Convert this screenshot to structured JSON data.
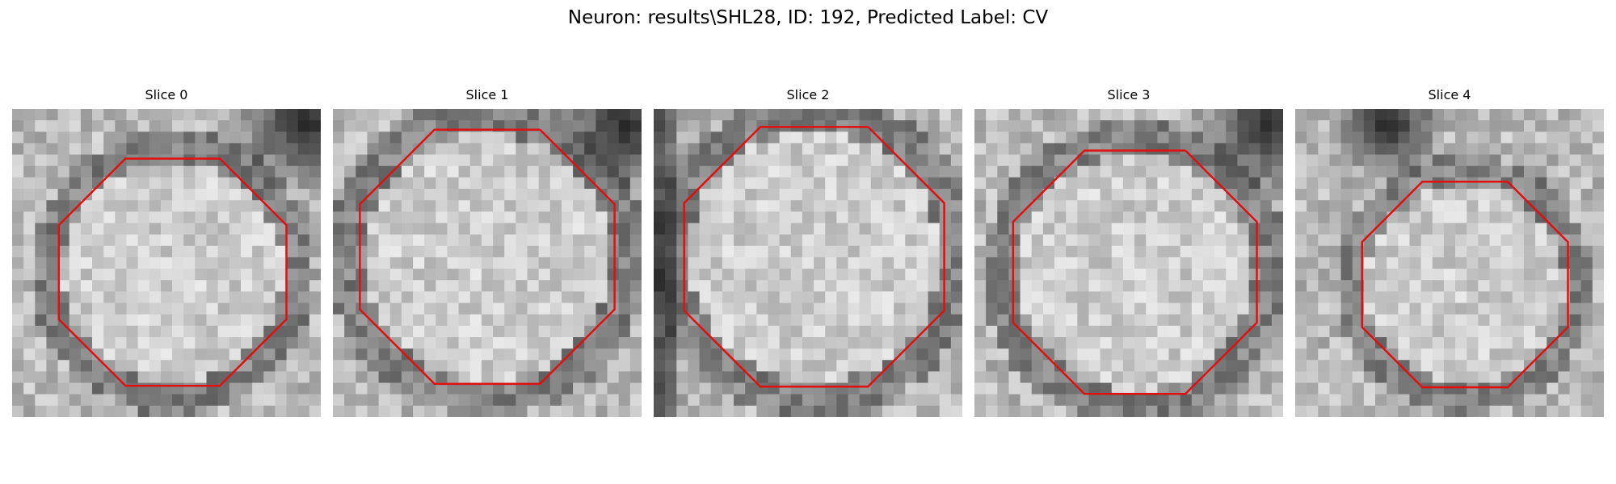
{
  "figure": {
    "title": "Neuron: results\\SHL28, ID: 192, Predicted Label: CV"
  },
  "colors": {
    "background": "#ffffff",
    "contour": "#e01010",
    "text": "#000000"
  },
  "panels": [
    {
      "title": "Slice 0",
      "seed": 11,
      "dark_corner": "top-right"
    },
    {
      "title": "Slice 1",
      "seed": 23,
      "dark_corner": "top-right"
    },
    {
      "title": "Slice 2",
      "seed": 37,
      "dark_corner": "left"
    },
    {
      "title": "Slice 3",
      "seed": 41,
      "dark_corner": "top-right"
    },
    {
      "title": "Slice 4",
      "seed": 53,
      "dark_corner": "top-left"
    }
  ]
}
